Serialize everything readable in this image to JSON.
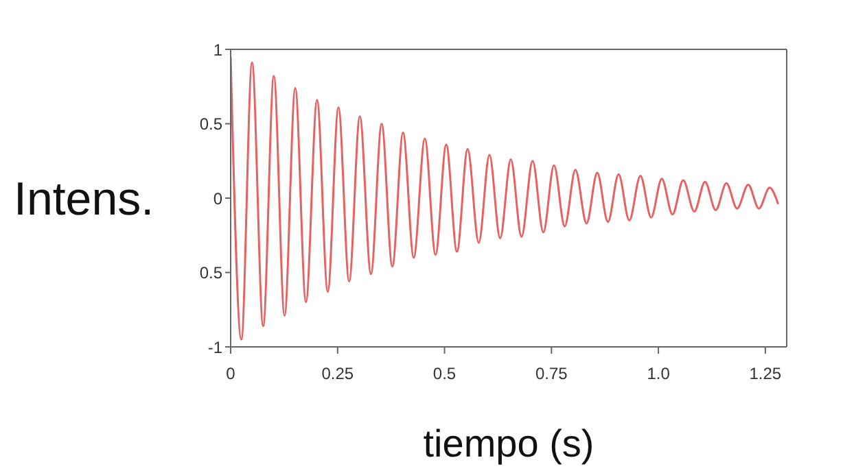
{
  "chart_data": {
    "type": "line",
    "xlabel": "tiempo (s)",
    "ylabel": "Intens.",
    "x": [
      0,
      0.025,
      0.05,
      0.076,
      0.101,
      0.126,
      0.151,
      0.176,
      0.202,
      0.227,
      0.252,
      0.277,
      0.302,
      0.328,
      0.353,
      0.378,
      0.403,
      0.428,
      0.454,
      0.479,
      0.504,
      0.529,
      0.554,
      0.58,
      0.605,
      0.63,
      0.655,
      0.68,
      0.706,
      0.731,
      0.756,
      0.781,
      0.806,
      0.832,
      0.857,
      0.882,
      0.907,
      0.932,
      0.958,
      0.983,
      1.008,
      1.033,
      1.058,
      1.084,
      1.109,
      1.134,
      1.159,
      1.184,
      1.21,
      1.235,
      1.26,
      1.28
    ],
    "series": [
      {
        "color": "#e8605f",
        "values": [
          0.95,
          -0.95,
          0.91,
          -0.86,
          0.82,
          -0.79,
          0.74,
          -0.7,
          0.66,
          -0.63,
          0.61,
          -0.56,
          0.55,
          -0.51,
          0.5,
          -0.46,
          0.44,
          -0.4,
          0.4,
          -0.38,
          0.36,
          -0.36,
          0.33,
          -0.3,
          0.29,
          -0.27,
          0.26,
          -0.26,
          0.25,
          -0.23,
          0.22,
          -0.19,
          0.19,
          -0.17,
          0.17,
          -0.16,
          0.16,
          -0.15,
          0.15,
          -0.13,
          0.13,
          -0.11,
          0.12,
          -0.09,
          0.11,
          -0.08,
          0.1,
          -0.07,
          0.09,
          -0.07,
          0.07,
          -0.04
        ]
      }
    ],
    "xlim": [
      0,
      1.3
    ],
    "xticks": [
      0,
      0.25,
      0.5,
      0.75,
      {
        "value": 1,
        "label": "1.0"
      },
      1.25
    ],
    "ylim": [
      -1,
      1
    ],
    "yticks": [
      -1,
      {
        "value": -0.5,
        "label": "0.5"
      },
      0,
      0.5,
      1
    ],
    "grid": false,
    "legend": false,
    "marker": "none",
    "line_style": "solid"
  }
}
